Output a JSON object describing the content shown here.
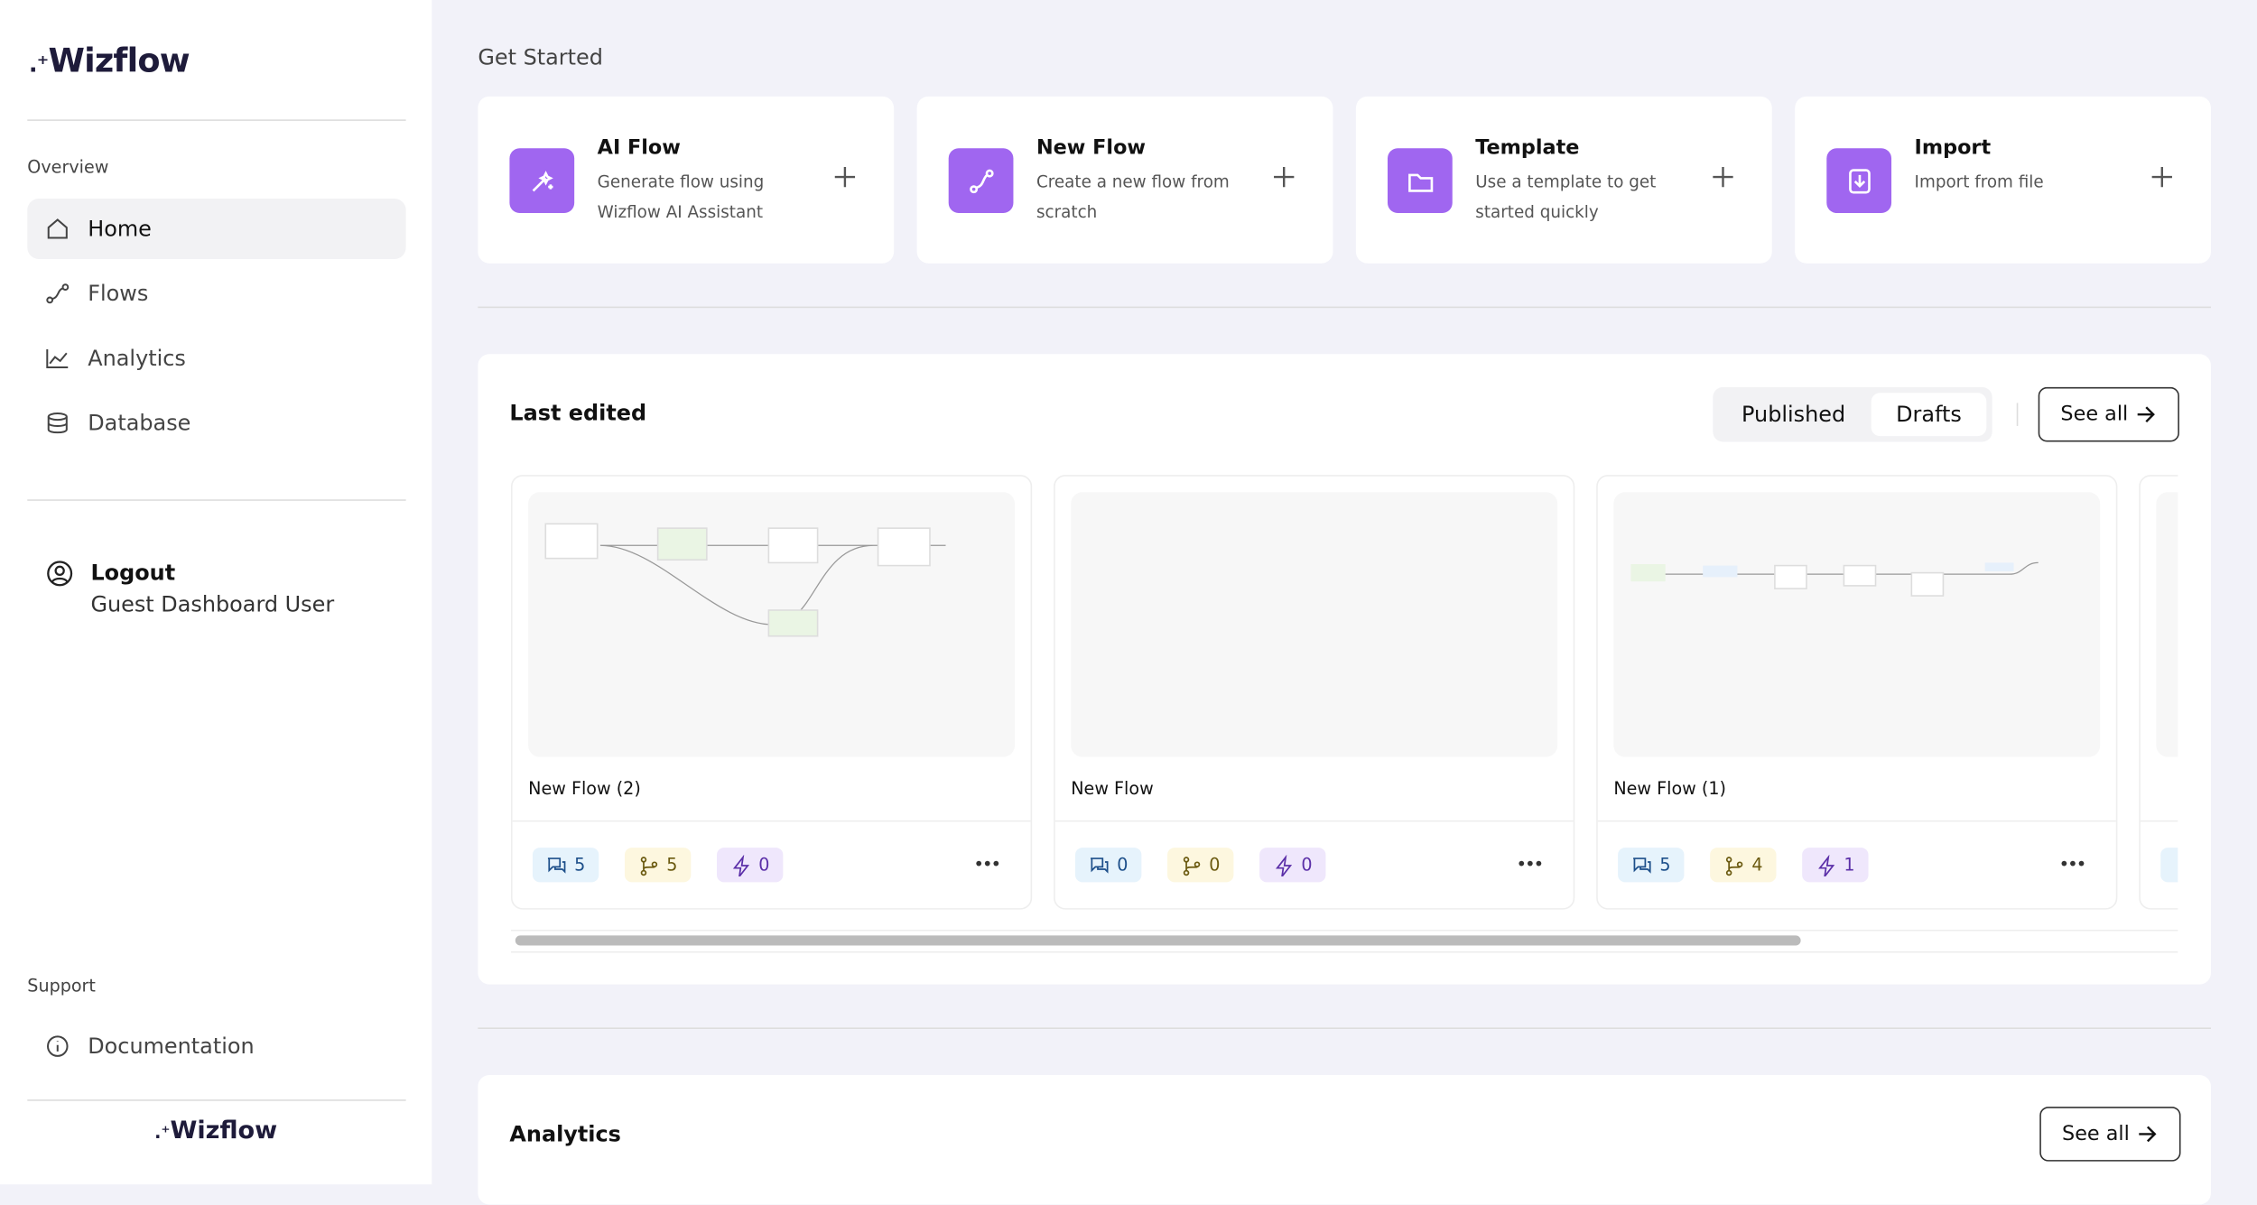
{
  "sidebar": {
    "brand": "Wizflow",
    "sections": [
      {
        "title": "Overview",
        "items": [
          "Home",
          "Flows",
          "Analytics",
          "Database"
        ]
      },
      {
        "title": "Support",
        "items": [
          "Documentation"
        ]
      }
    ],
    "logout": "Logout",
    "user": "Guest Dashboard User"
  },
  "get_started": {
    "title": "Get Started",
    "cards": [
      {
        "title": "AI Flow",
        "description": "Generate flow using Wizflow AI Assistant"
      },
      {
        "title": "New Flow",
        "description": "Create a new flow from scratch"
      },
      {
        "title": "Template",
        "description": "Use a template to get started quickly"
      },
      {
        "title": "Import",
        "description": "Import from file"
      }
    ]
  },
  "last_edited": {
    "title": "Last edited",
    "tabs": [
      "Published",
      "Drafts"
    ],
    "see_all": "See all",
    "flows": [
      {
        "name": "New Flow (2)",
        "comments": 5,
        "branches": 5,
        "triggers": 0
      },
      {
        "name": "New Flow",
        "comments": 0,
        "branches": 0,
        "triggers": 0
      },
      {
        "name": "New Flow (1)",
        "comments": 5,
        "branches": 4,
        "triggers": 1
      }
    ]
  },
  "analytics": {
    "title": "Analytics",
    "see_all": "See all"
  }
}
